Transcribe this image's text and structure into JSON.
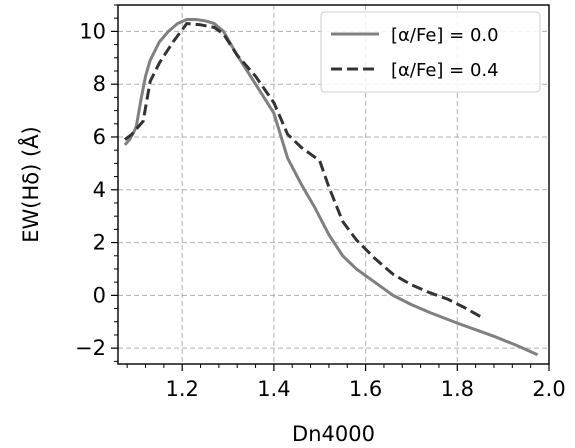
{
  "chart_data": {
    "type": "line",
    "xlabel": "Dn4000",
    "ylabel": "EW(Hδ) (Å)",
    "xlim": [
      1.06,
      2.0
    ],
    "ylim": [
      -2.6,
      11.0
    ],
    "grid": true,
    "legend_position": "top-right",
    "x_ticks": [
      1.2,
      1.4,
      1.6,
      1.8,
      2.0
    ],
    "x_tick_labels": [
      "1.2",
      "1.4",
      "1.6",
      "1.8",
      "2.0"
    ],
    "y_ticks": [
      -2,
      0,
      2,
      4,
      6,
      8,
      10
    ],
    "y_tick_labels": [
      "−2",
      "0",
      "2",
      "4",
      "6",
      "8",
      "10"
    ],
    "series": [
      {
        "name": "[α/Fe] = 0.0",
        "color": "#808080",
        "dash": "solid",
        "x": [
          1.075,
          1.085,
          1.095,
          1.1,
          1.105,
          1.11,
          1.12,
          1.13,
          1.15,
          1.17,
          1.19,
          1.21,
          1.23,
          1.25,
          1.27,
          1.29,
          1.32,
          1.36,
          1.4,
          1.43,
          1.46,
          1.49,
          1.52,
          1.55,
          1.58,
          1.62,
          1.66,
          1.7,
          1.74,
          1.8,
          1.84,
          1.88,
          1.93,
          1.975
        ],
        "y": [
          5.7,
          5.9,
          6.2,
          6.4,
          6.9,
          7.4,
          8.3,
          8.9,
          9.6,
          10.0,
          10.3,
          10.45,
          10.45,
          10.4,
          10.3,
          10.0,
          9.1,
          8.0,
          6.9,
          5.2,
          4.2,
          3.3,
          2.3,
          1.5,
          1.0,
          0.5,
          0.0,
          -0.35,
          -0.65,
          -1.05,
          -1.3,
          -1.55,
          -1.9,
          -2.25
        ]
      },
      {
        "name": "[α/Fe] = 0.4",
        "color": "#333333",
        "dash": "dashed",
        "x": [
          1.075,
          1.09,
          1.1,
          1.115,
          1.12,
          1.13,
          1.15,
          1.18,
          1.21,
          1.24,
          1.27,
          1.29,
          1.32,
          1.36,
          1.4,
          1.43,
          1.46,
          1.5,
          1.52,
          1.55,
          1.58,
          1.62,
          1.66,
          1.7,
          1.74,
          1.78,
          1.82,
          1.85
        ],
        "y": [
          5.9,
          6.1,
          6.3,
          6.6,
          7.1,
          8.1,
          8.8,
          9.6,
          10.3,
          10.25,
          10.15,
          9.9,
          9.1,
          8.3,
          7.3,
          6.1,
          5.6,
          5.1,
          4.1,
          2.8,
          2.1,
          1.4,
          0.8,
          0.4,
          0.1,
          -0.15,
          -0.5,
          -0.8
        ]
      }
    ]
  }
}
